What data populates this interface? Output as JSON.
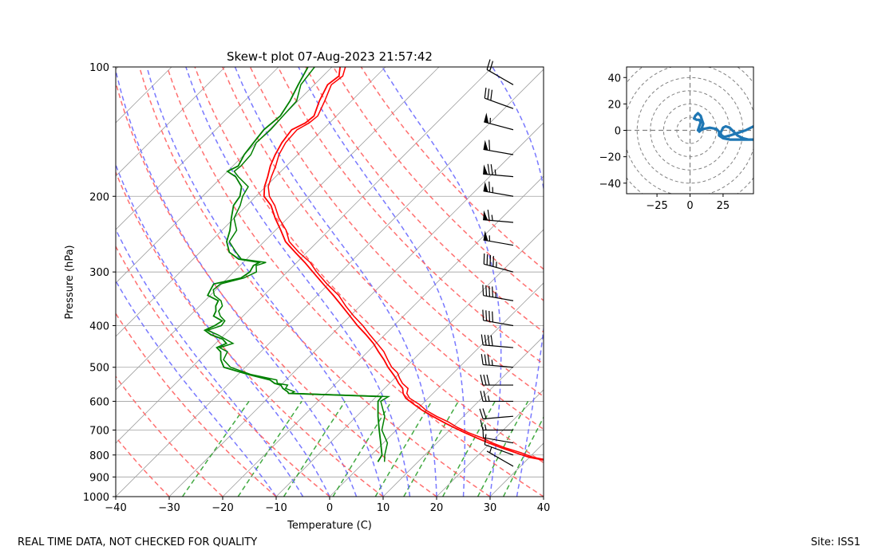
{
  "footer": {
    "left_note": "REAL TIME DATA, NOT CHECKED FOR QUALITY",
    "site": "Site: ISS1"
  },
  "colors": {
    "temperature": "#ff0000",
    "dewpoint": "#008000",
    "dry_adiabat": "#ff6060",
    "moist_adiabat": "#6a6aff",
    "mixing_ratio": "#2ca02c",
    "isotherm": "#a0a0a0",
    "hodograph": "#1f77b4",
    "barb": "#000000",
    "hodo_ring": "#808080"
  },
  "chart_data": [
    {
      "type": "skew-t",
      "title": "Skew-t plot 07-Aug-2023 21:57:42",
      "xlabel": "Temperature (C)",
      "ylabel": "Pressure (hPa)",
      "xlim": [
        -40,
        40
      ],
      "ylim": [
        1000,
        100
      ],
      "x_ticks": [
        -40,
        -30,
        -20,
        -10,
        0,
        10,
        20,
        30,
        40
      ],
      "x_tick_labels": [
        "−40",
        "−30",
        "−20",
        "−10",
        "0",
        "10",
        "20",
        "30",
        "40"
      ],
      "y_ticks": [
        1000,
        900,
        800,
        700,
        600,
        500,
        400,
        300,
        200,
        100
      ],
      "y_tick_labels": [
        "1000",
        "900",
        "800",
        "700",
        "600",
        "500",
        "400",
        "300",
        "200",
        "100"
      ],
      "grid": true,
      "isotherms_c": [
        -150,
        -140,
        -130,
        -120,
        -110,
        -100,
        -90,
        -80,
        -70,
        -60,
        -50,
        -40,
        -30,
        -20,
        -10,
        0,
        10,
        20,
        30,
        40
      ],
      "dry_adiabats_c_at_1000": [
        -30,
        -20,
        -10,
        0,
        10,
        20,
        30,
        40,
        50,
        60,
        70,
        80,
        90,
        100,
        110
      ],
      "moist_adiabats_c_at_1000": [
        -10,
        -5,
        0,
        5,
        10,
        15,
        20,
        25,
        30,
        35
      ],
      "mixing_ratio_lines_gkg": [
        0.4,
        1,
        2,
        4,
        7,
        10,
        16,
        24,
        32
      ],
      "series": [
        {
          "name": "Temperature",
          "pressure": [
            830,
            825,
            810,
            790,
            770,
            750,
            730,
            710,
            690,
            670,
            650,
            630,
            610,
            590,
            575,
            560,
            545,
            530,
            515,
            500,
            480,
            460,
            440,
            420,
            400,
            380,
            360,
            340,
            320,
            300,
            285,
            270,
            255,
            240,
            225,
            210,
            200,
            190,
            180,
            170,
            160,
            150,
            140,
            135,
            130,
            120,
            110,
            105,
            100
          ],
          "temperature_c": [
            38,
            34,
            30,
            26.5,
            23,
            19.7,
            16.5,
            13.3,
            10.2,
            7.2,
            4.2,
            1.2,
            -1.5,
            -4.2,
            -5.6,
            -6.6,
            -8.3,
            -9.8,
            -11.5,
            -13.3,
            -15.5,
            -18.0,
            -20.5,
            -23.5,
            -26.8,
            -30.0,
            -33.4,
            -37.0,
            -41.0,
            -45.2,
            -48.5,
            -52.2,
            -56.0,
            -59.0,
            -62.3,
            -65.5,
            -68.5,
            -70.2,
            -71.5,
            -73.0,
            -74.2,
            -75.2,
            -75.8,
            -74.5,
            -74.2,
            -76.0,
            -77.5,
            -77.0,
            -78.5
          ]
        },
        {
          "name": "Dewpoint",
          "pressure": [
            830,
            800,
            750,
            700,
            650,
            600,
            585,
            575,
            570,
            560,
            550,
            545,
            535,
            520,
            500,
            480,
            460,
            450,
            440,
            430,
            420,
            410,
            400,
            390,
            380,
            370,
            360,
            350,
            340,
            330,
            320,
            310,
            300,
            290,
            285,
            280,
            270,
            255,
            240,
            225,
            210,
            200,
            190,
            180,
            175,
            170,
            160,
            150,
            140,
            130,
            120,
            110,
            100
          ],
          "dewpoint_c": [
            2.5,
            2.0,
            -0.5,
            -3.2,
            -6.0,
            -8.8,
            -9.0,
            -27.0,
            -27.5,
            -29.0,
            -30.0,
            -31.5,
            -33.0,
            -38.0,
            -44.0,
            -46.0,
            -47.5,
            -49.0,
            -48.0,
            -49.5,
            -52.5,
            -54.5,
            -53.5,
            -53.0,
            -55.5,
            -56.0,
            -57.0,
            -57.5,
            -60.5,
            -61.0,
            -61.5,
            -57.5,
            -57.0,
            -57.5,
            -57.0,
            -61.5,
            -64.5,
            -67.0,
            -68.5,
            -70.5,
            -72.5,
            -73.0,
            -74.5,
            -77.5,
            -80.0,
            -79.0,
            -80.0,
            -80.5,
            -81.0,
            -80.5,
            -81.5,
            -83.0,
            -84.5
          ]
        }
      ],
      "wind_barbs": [
        {
          "pressure": 850,
          "speed_kt": 5,
          "direction_deg": 300
        },
        {
          "pressure": 800,
          "speed_kt": 10,
          "direction_deg": 290
        },
        {
          "pressure": 750,
          "speed_kt": 10,
          "direction_deg": 280
        },
        {
          "pressure": 700,
          "speed_kt": 15,
          "direction_deg": 270
        },
        {
          "pressure": 650,
          "speed_kt": 20,
          "direction_deg": 265
        },
        {
          "pressure": 600,
          "speed_kt": 25,
          "direction_deg": 270
        },
        {
          "pressure": 550,
          "speed_kt": 30,
          "direction_deg": 270
        },
        {
          "pressure": 500,
          "speed_kt": 35,
          "direction_deg": 275
        },
        {
          "pressure": 450,
          "speed_kt": 40,
          "direction_deg": 275
        },
        {
          "pressure": 400,
          "speed_kt": 40,
          "direction_deg": 280
        },
        {
          "pressure": 350,
          "speed_kt": 45,
          "direction_deg": 280
        },
        {
          "pressure": 300,
          "speed_kt": 45,
          "direction_deg": 285
        },
        {
          "pressure": 260,
          "speed_kt": 55,
          "direction_deg": 280
        },
        {
          "pressure": 230,
          "speed_kt": 65,
          "direction_deg": 275
        },
        {
          "pressure": 200,
          "speed_kt": 65,
          "direction_deg": 280
        },
        {
          "pressure": 180,
          "speed_kt": 75,
          "direction_deg": 275
        },
        {
          "pressure": 160,
          "speed_kt": 60,
          "direction_deg": 280
        },
        {
          "pressure": 140,
          "speed_kt": 55,
          "direction_deg": 285
        },
        {
          "pressure": 125,
          "speed_kt": 30,
          "direction_deg": 290
        },
        {
          "pressure": 110,
          "speed_kt": 20,
          "direction_deg": 300
        }
      ]
    },
    {
      "type": "hodograph",
      "xlim": [
        -48,
        48
      ],
      "ylim": [
        -48,
        48
      ],
      "x_ticks": [
        -25,
        0,
        25
      ],
      "x_tick_labels": [
        "−25",
        "0",
        "25"
      ],
      "y_ticks": [
        40,
        20,
        0,
        -20,
        -40
      ],
      "y_tick_labels": [
        "40",
        "20",
        "0",
        "−20",
        "−40"
      ],
      "ring_radii": [
        10,
        20,
        30,
        40,
        50,
        60
      ],
      "u": [
        48,
        42,
        36,
        30,
        26,
        24,
        23,
        24,
        25,
        27,
        30,
        32,
        34,
        36,
        40,
        44,
        48,
        40,
        30,
        25,
        22,
        22,
        20,
        15,
        10,
        8,
        7,
        9,
        10,
        9,
        8,
        6,
        4,
        3,
        5,
        7,
        8,
        7,
        6
      ],
      "v": [
        3,
        0,
        -2,
        -4,
        -5,
        -4,
        -2,
        0,
        2,
        3,
        2,
        0,
        -2,
        -4,
        -6,
        -7,
        -7,
        -7,
        -7,
        -6,
        -4,
        -1,
        1,
        2,
        1,
        0,
        -1,
        2,
        5,
        8,
        11,
        13,
        11,
        9,
        8,
        8,
        6,
        3,
        0
      ]
    }
  ]
}
